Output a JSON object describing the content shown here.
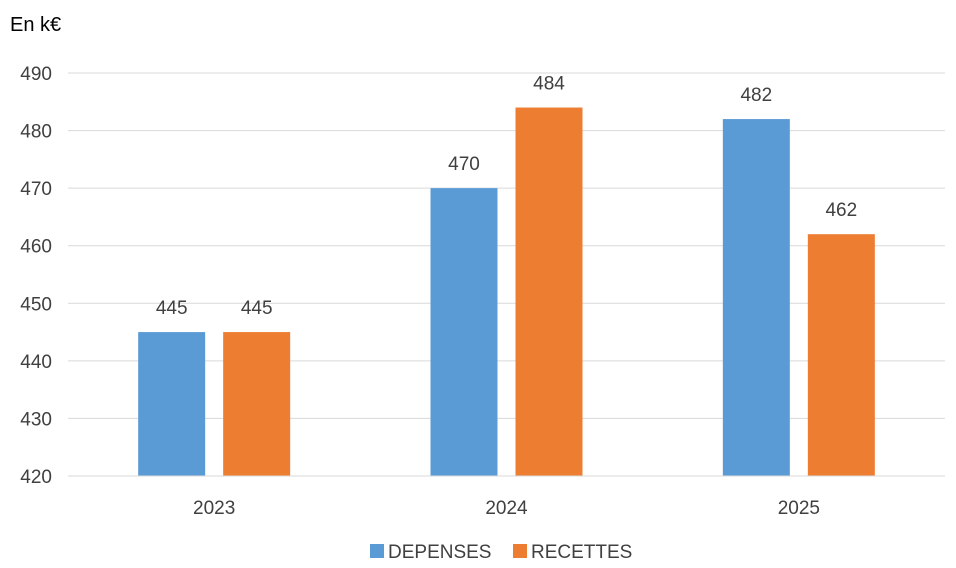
{
  "chart_data": {
    "type": "bar",
    "unit_label": "En k€",
    "categories": [
      "2023",
      "2024",
      "2025"
    ],
    "series": [
      {
        "name": "DEPENSES",
        "color": "#5B9BD5",
        "values": [
          445,
          470,
          482
        ]
      },
      {
        "name": "RECETTES",
        "color": "#ED7D31",
        "values": [
          445,
          484,
          462
        ]
      }
    ],
    "ylim": [
      420,
      490
    ],
    "yticks": [
      "420",
      "430",
      "440",
      "450",
      "460",
      "470",
      "480",
      "490"
    ],
    "data_labels": [
      [
        "445",
        "470",
        "482"
      ],
      [
        "445",
        "484",
        "462"
      ]
    ],
    "grid": true,
    "legend_position": "bottom",
    "gridline_color": "#D9D9D9",
    "text_color": "#404040"
  }
}
